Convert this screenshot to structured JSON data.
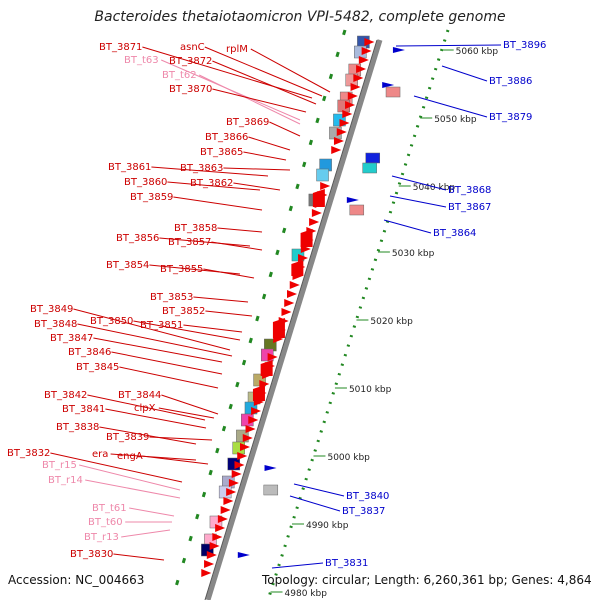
{
  "title": "Bacteroides thetaiotaomicron VPI-5482, complete genome",
  "accession_label": "Accession: NC_004663",
  "topology_label": "Topology: circular; Length: 6,260,361 bp; Genes: 4,864",
  "colors": {
    "left_label": "#cc0000",
    "left_label_light": "#ee88aa",
    "right_label": "#0000cc",
    "backbone": "#888888",
    "tick": "#228822",
    "gene": "#ee0000"
  },
  "ruler_ticks": [
    "5060 kbp",
    "5050 kbp",
    "5040 kbp",
    "5030 kbp",
    "5020 kbp",
    "5010 kbp",
    "5000 kbp",
    "4990 kbp",
    "4980 kbp"
  ],
  "left_labels": [
    {
      "text": "BT_3871",
      "light": false
    },
    {
      "text": "asnC",
      "light": false
    },
    {
      "text": "rplM",
      "light": false
    },
    {
      "text": "BT_t63",
      "light": true
    },
    {
      "text": "BT_3872",
      "light": false
    },
    {
      "text": "BT_t62",
      "light": true
    },
    {
      "text": "BT_3870",
      "light": false
    },
    {
      "text": "BT_3869",
      "light": false
    },
    {
      "text": "BT_3866",
      "light": false
    },
    {
      "text": "BT_3865",
      "light": false
    },
    {
      "text": "BT_3861",
      "light": false
    },
    {
      "text": "BT_3863",
      "light": false
    },
    {
      "text": "BT_3860",
      "light": false
    },
    {
      "text": "BT_3862",
      "light": false
    },
    {
      "text": "BT_3859",
      "light": false
    },
    {
      "text": "BT_3858",
      "light": false
    },
    {
      "text": "BT_3856",
      "light": false
    },
    {
      "text": "BT_3857",
      "light": false
    },
    {
      "text": "BT_3854",
      "light": false
    },
    {
      "text": "BT_3855",
      "light": false
    },
    {
      "text": "BT_3853",
      "light": false
    },
    {
      "text": "BT_3852",
      "light": false
    },
    {
      "text": "BT_3849",
      "light": false
    },
    {
      "text": "BT_3848",
      "light": false
    },
    {
      "text": "BT_3850",
      "light": false
    },
    {
      "text": "BT_3851",
      "light": false
    },
    {
      "text": "BT_3847",
      "light": false
    },
    {
      "text": "BT_3846",
      "light": false
    },
    {
      "text": "BT_3845",
      "light": false
    },
    {
      "text": "BT_3842",
      "light": false
    },
    {
      "text": "BT_3844",
      "light": false
    },
    {
      "text": "BT_3841",
      "light": false
    },
    {
      "text": "clpX",
      "light": false
    },
    {
      "text": "BT_3838",
      "light": false
    },
    {
      "text": "BT_3839",
      "light": false
    },
    {
      "text": "era",
      "light": false
    },
    {
      "text": "engA",
      "light": false
    },
    {
      "text": "BT_3832",
      "light": false
    },
    {
      "text": "BT_r15",
      "light": true
    },
    {
      "text": "BT_r14",
      "light": true
    },
    {
      "text": "BT_t61",
      "light": true
    },
    {
      "text": "BT_t60",
      "light": true
    },
    {
      "text": "BT_r13",
      "light": true
    },
    {
      "text": "BT_3830",
      "light": false
    }
  ],
  "right_labels": [
    {
      "text": "BT_3896"
    },
    {
      "text": "BT_3886"
    },
    {
      "text": "BT_3879"
    },
    {
      "text": "BT_3868"
    },
    {
      "text": "BT_3867"
    },
    {
      "text": "BT_3864"
    },
    {
      "text": "BT_3840"
    },
    {
      "text": "BT_3837"
    },
    {
      "text": "BT_3831"
    }
  ]
}
